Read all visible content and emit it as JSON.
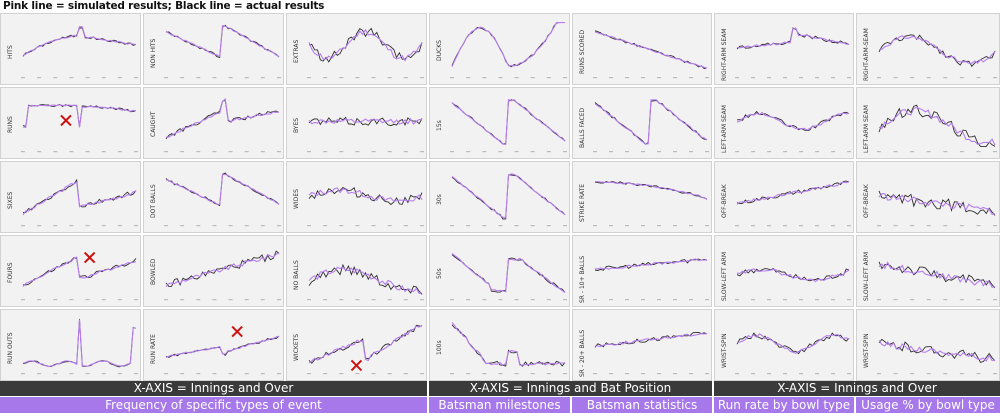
{
  "headline": "Pink line = simulated results; Black line = actual results",
  "colors": {
    "simulated": "#b67cf0",
    "actual": "#2e2e2e",
    "marker": "#cc1111"
  },
  "bands": {
    "xaxis": [
      {
        "text": "X-AXIS = Innings and Over"
      },
      {
        "text": "X-AXIS = Innings and Bat Position"
      },
      {
        "text": "X-AXIS = Innings and Over"
      }
    ],
    "subtitles": [
      {
        "text": "Frequency of specific types of event"
      },
      {
        "text": "Batsman milestones"
      },
      {
        "text": "Batsman statistics"
      },
      {
        "text": "Run rate by bowl type"
      },
      {
        "text": "Usage % by bowl type"
      }
    ]
  },
  "chart_data": {
    "type": "line",
    "series_names": [
      "simulated",
      "actual"
    ],
    "panels": [
      {
        "label": "HITS",
        "col": 0,
        "row": 0,
        "shape": "hump2",
        "noise": 0.03,
        "seed": 1,
        "markers": []
      },
      {
        "label": "RUNS",
        "col": 0,
        "row": 1,
        "shape": "hump2hi",
        "noise": 0.03,
        "seed": 2,
        "markers": [
          [
            0.38,
            0.45
          ]
        ]
      },
      {
        "label": "SIXES",
        "col": 0,
        "row": 2,
        "shape": "rise2",
        "noise": 0.06,
        "seed": 3,
        "markers": []
      },
      {
        "label": "FOURS",
        "col": 0,
        "row": 3,
        "shape": "fours",
        "noise": 0.05,
        "seed": 4,
        "markers": [
          [
            0.59,
            0.3
          ]
        ]
      },
      {
        "label": "RUN OUTS",
        "col": 0,
        "row": 4,
        "shape": "spike2",
        "noise": 0.02,
        "seed": 5,
        "markers": []
      },
      {
        "label": "NON HITS",
        "col": 1,
        "row": 0,
        "shape": "fall2",
        "noise": 0.03,
        "seed": 6,
        "markers": []
      },
      {
        "label": "CAUGHT",
        "col": 1,
        "row": 1,
        "shape": "caught",
        "noise": 0.05,
        "seed": 7,
        "markers": []
      },
      {
        "label": "DOT BALLS",
        "col": 1,
        "row": 2,
        "shape": "fall2",
        "noise": 0.03,
        "seed": 8,
        "markers": []
      },
      {
        "label": "BOWLED",
        "col": 1,
        "row": 3,
        "shape": "bowled",
        "noise": 0.09,
        "seed": 9,
        "markers": []
      },
      {
        "label": "RUN RATE",
        "col": 1,
        "row": 4,
        "shape": "runrate",
        "noise": 0.03,
        "seed": 10,
        "markers": [
          [
            0.63,
            0.3
          ]
        ]
      },
      {
        "label": "EXTRAS",
        "col": 2,
        "row": 0,
        "shape": "extras",
        "noise": 0.12,
        "seed": 11,
        "markers": []
      },
      {
        "label": "BYES",
        "col": 2,
        "row": 1,
        "shape": "flatmid",
        "noise": 0.1,
        "seed": 12,
        "markers": []
      },
      {
        "label": "WIDES",
        "col": 2,
        "row": 2,
        "shape": "wides",
        "noise": 0.11,
        "seed": 13,
        "markers": []
      },
      {
        "label": "NO BALLS",
        "col": 2,
        "row": 3,
        "shape": "noballs",
        "noise": 0.13,
        "seed": 14,
        "markers": []
      },
      {
        "label": "WICKETS",
        "col": 2,
        "row": 4,
        "shape": "wickets",
        "noise": 0.06,
        "seed": 15,
        "markers": [
          [
            0.42,
            0.77
          ]
        ]
      },
      {
        "label": "DUCKS",
        "col": 3,
        "row": 0,
        "shape": "ducks",
        "noise": 0.03,
        "seed": 16,
        "markers": []
      },
      {
        "label": "15s",
        "col": 3,
        "row": 1,
        "shape": "drop2",
        "noise": 0.03,
        "seed": 17,
        "markers": []
      },
      {
        "label": "30s",
        "col": 3,
        "row": 2,
        "shape": "drop2",
        "noise": 0.03,
        "seed": 18,
        "markers": []
      },
      {
        "label": "50s",
        "col": 3,
        "row": 3,
        "shape": "fifties",
        "noise": 0.04,
        "seed": 19,
        "markers": []
      },
      {
        "label": "100s",
        "col": 3,
        "row": 4,
        "shape": "hundreds",
        "noise": 0.06,
        "seed": 20,
        "markers": []
      },
      {
        "label": "RUNS SCORED",
        "col": 4,
        "row": 0,
        "shape": "declin",
        "noise": 0.03,
        "seed": 21,
        "markers": []
      },
      {
        "label": "BALLS FACED",
        "col": 4,
        "row": 1,
        "shape": "drop2",
        "noise": 0.03,
        "seed": 22,
        "markers": []
      },
      {
        "label": "STRIKE RATE",
        "col": 4,
        "row": 2,
        "shape": "strike",
        "noise": 0.03,
        "seed": 23,
        "markers": []
      },
      {
        "label": "SR - 10+ BALLS",
        "col": 4,
        "row": 3,
        "shape": "sr10",
        "noise": 0.05,
        "seed": 24,
        "markers": []
      },
      {
        "label": "SR - 20+ BALLS",
        "col": 4,
        "row": 4,
        "shape": "sr20",
        "noise": 0.05,
        "seed": 25,
        "markers": []
      },
      {
        "label": "RIGHT-ARM SEAM",
        "col": 5,
        "row": 0,
        "shape": "rarm",
        "noise": 0.04,
        "seed": 26,
        "markers": []
      },
      {
        "label": "LEFT-ARM SEAM",
        "col": 5,
        "row": 1,
        "shape": "larm",
        "noise": 0.05,
        "seed": 27,
        "markers": []
      },
      {
        "label": "OFF-BREAK",
        "col": 5,
        "row": 2,
        "shape": "offb",
        "noise": 0.05,
        "seed": 28,
        "markers": []
      },
      {
        "label": "SLOW-LEFT ARM",
        "col": 5,
        "row": 3,
        "shape": "sla",
        "noise": 0.07,
        "seed": 29,
        "markers": []
      },
      {
        "label": "WRIST-SPIN",
        "col": 5,
        "row": 4,
        "shape": "wrist",
        "noise": 0.07,
        "seed": 30,
        "markers": []
      },
      {
        "label": "RIGHT-ARM-SEAM",
        "col": 6,
        "row": 0,
        "shape": "usageR",
        "noise": 0.08,
        "seed": 31,
        "markers": []
      },
      {
        "label": "LEFT-ARM SEAM",
        "col": 6,
        "row": 1,
        "shape": "usageL",
        "noise": 0.14,
        "seed": 32,
        "markers": []
      },
      {
        "label": "OFF-BREAK",
        "col": 6,
        "row": 2,
        "shape": "usageO",
        "noise": 0.14,
        "seed": 33,
        "markers": []
      },
      {
        "label": "SLOW-LEFT ARM",
        "col": 6,
        "row": 3,
        "shape": "usageS",
        "noise": 0.13,
        "seed": 34,
        "markers": []
      },
      {
        "label": "WRIST-SPIN",
        "col": 6,
        "row": 4,
        "shape": "usageW",
        "noise": 0.12,
        "seed": 35,
        "markers": []
      }
    ]
  }
}
